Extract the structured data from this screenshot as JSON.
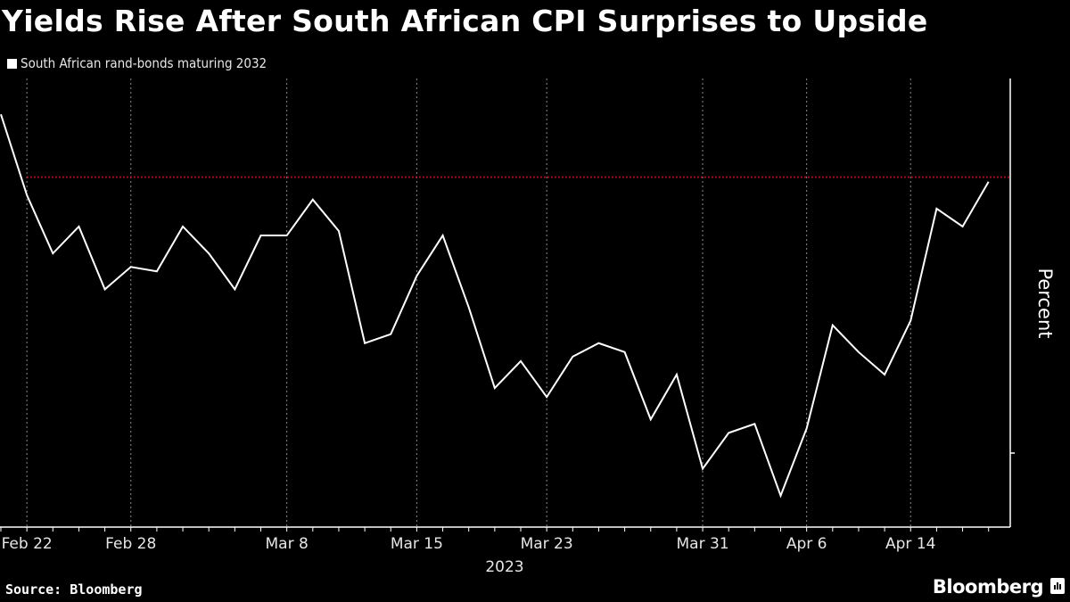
{
  "title": "Yields Rise After South African CPI Surprises to Upside",
  "legend": {
    "label": "South African rand-bonds maturing 2032",
    "color": "#ffffff"
  },
  "source": "Source: Bloomberg",
  "brand": "Bloomberg",
  "colors": {
    "background": "#000000",
    "line": "#ffffff",
    "reference_line": "#c8102e",
    "gridline": "#8a8a8a",
    "axis": "#ffffff"
  },
  "chart_data": {
    "type": "line",
    "title": "Yields Rise After South African CPI Surprises to Upside",
    "xlabel": "2023",
    "ylabel": "Percent",
    "y_units_note": "axis has no numeric tick labels; values estimated as percent of visible axis range (0 = bottom, 100 = top)",
    "ylim": [
      0,
      100
    ],
    "grid": "vertical dotted at labeled dates",
    "legend_position": "top-left",
    "x_tick_labels": [
      "Feb 22",
      "Feb 28",
      "Mar 8",
      "Mar 15",
      "Mar 23",
      "Mar 31",
      "Apr 6",
      "Apr 14"
    ],
    "x_year_label": "2023",
    "reference_line": {
      "value": 78,
      "style": "dotted",
      "color": "#c8102e"
    },
    "series": [
      {
        "name": "South African rand-bonds maturing 2032",
        "x": [
          "Feb 21",
          "Feb 22",
          "Feb 23",
          "Feb 24",
          "Feb 27",
          "Feb 28",
          "Mar 1",
          "Mar 2",
          "Mar 3",
          "Mar 6",
          "Mar 7",
          "Mar 8",
          "Mar 9",
          "Mar 10",
          "Mar 13",
          "Mar 14",
          "Mar 15",
          "Mar 16",
          "Mar 17",
          "Mar 20",
          "Mar 22",
          "Mar 23",
          "Mar 24",
          "Mar 27",
          "Mar 28",
          "Mar 29",
          "Mar 30",
          "Mar 31",
          "Apr 3",
          "Apr 4",
          "Apr 5",
          "Apr 6",
          "Apr 11",
          "Apr 12",
          "Apr 13",
          "Apr 14",
          "Apr 17",
          "Apr 18",
          "Apr 19"
        ],
        "values": [
          92,
          74,
          61,
          67,
          53,
          58,
          57,
          67,
          61,
          53,
          65,
          65,
          73,
          66,
          41,
          43,
          56,
          65,
          49,
          31,
          37,
          29,
          38,
          41,
          39,
          24,
          34,
          13,
          21,
          23,
          7,
          22,
          45,
          39,
          34,
          46,
          71,
          67,
          77
        ]
      }
    ]
  }
}
